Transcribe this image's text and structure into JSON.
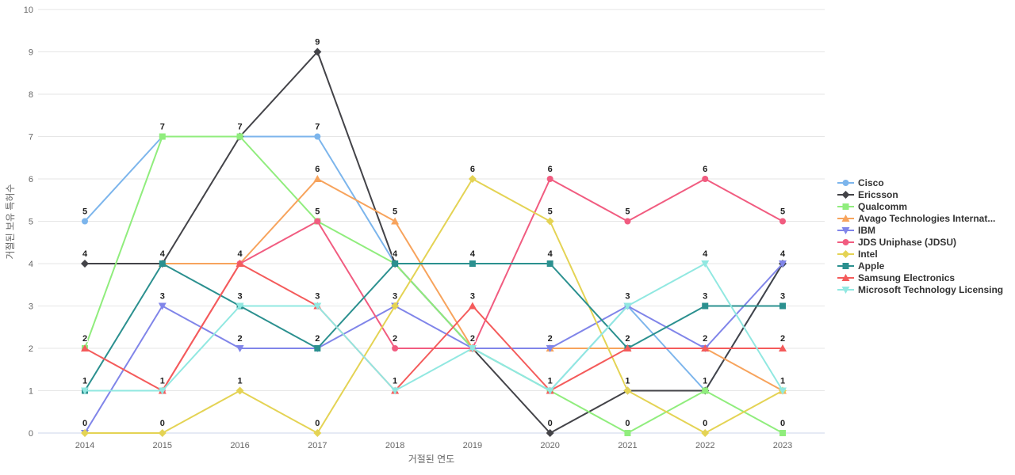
{
  "chart_data": {
    "type": "line",
    "title": "",
    "xlabel": "거절된 연도",
    "ylabel": "거절된 보유 특허수",
    "x": [
      2014,
      2015,
      2016,
      2017,
      2018,
      2019,
      2020,
      2021,
      2022,
      2023
    ],
    "xticks": [
      "2014",
      "2015",
      "2016",
      "2017",
      "2018",
      "2019",
      "2020",
      "2021",
      "2022",
      "2023"
    ],
    "yticks": [
      0,
      1,
      2,
      3,
      4,
      5,
      6,
      7,
      8,
      9,
      10
    ],
    "ylim": [
      0,
      10
    ],
    "grid": "horizontal",
    "legend_position": "right",
    "colors": {
      "grid": "#e6e6e6",
      "axis_line": "#ccd6eb",
      "tick_text": "#666666",
      "label_text": "#1f1f1f",
      "legend_text": "#333333",
      "background": "#ffffff"
    },
    "series": [
      {
        "name": "Cisco",
        "color": "#7cb5ec",
        "marker": "circle",
        "values": [
          5,
          7,
          7,
          7,
          4,
          2,
          1,
          3,
          1,
          4
        ]
      },
      {
        "name": "Ericsson",
        "color": "#434348",
        "marker": "diamond",
        "values": [
          4,
          4,
          7,
          9,
          4,
          2,
          0,
          1,
          1,
          4
        ]
      },
      {
        "name": "Qualcomm",
        "color": "#90ed7d",
        "marker": "square",
        "values": [
          2,
          7,
          7,
          5,
          4,
          2,
          1,
          0,
          1,
          0
        ]
      },
      {
        "name": "Avago Technologies Internat...",
        "color": "#f7a35c",
        "marker": "triangle",
        "values": [
          null,
          4,
          4,
          6,
          5,
          2,
          2,
          2,
          2,
          1
        ]
      },
      {
        "name": "IBM",
        "color": "#8085e9",
        "marker": "triangle-down",
        "values": [
          0,
          3,
          2,
          2,
          3,
          2,
          2,
          3,
          2,
          4
        ]
      },
      {
        "name": "JDS Uniphase (JDSU)",
        "color": "#f15c80",
        "marker": "circle",
        "values": [
          null,
          1,
          4,
          5,
          2,
          2,
          6,
          5,
          6,
          5
        ]
      },
      {
        "name": "Intel",
        "color": "#e4d354",
        "marker": "diamond",
        "values": [
          0,
          0,
          1,
          0,
          3,
          6,
          5,
          1,
          0,
          1
        ]
      },
      {
        "name": "Apple",
        "color": "#2b908f",
        "marker": "square",
        "values": [
          1,
          4,
          3,
          2,
          4,
          4,
          4,
          2,
          3,
          3
        ]
      },
      {
        "name": "Samsung Electronics",
        "color": "#f45b5b",
        "marker": "triangle",
        "values": [
          2,
          1,
          4,
          3,
          1,
          3,
          1,
          2,
          2,
          2
        ]
      },
      {
        "name": "Microsoft Technology Licensing",
        "color": "#91e8e1",
        "marker": "triangle-down",
        "values": [
          1,
          1,
          3,
          3,
          1,
          2,
          1,
          3,
          4,
          1
        ]
      }
    ]
  }
}
